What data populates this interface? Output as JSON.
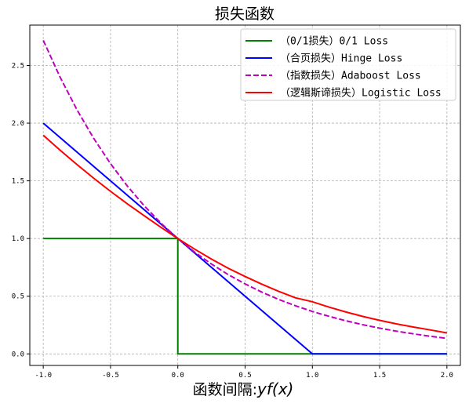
{
  "chart_data": {
    "type": "line",
    "title": "损失函数",
    "xlabel_prefix": "函数间隔:",
    "xlabel_math": "yf(x)",
    "ylabel": "",
    "xlim": [
      -1.1,
      2.1
    ],
    "ylim": [
      -0.1,
      2.85
    ],
    "x_ticks": [
      -1.0,
      -0.5,
      0.0,
      0.5,
      1.0,
      1.5,
      2.0
    ],
    "x_tick_labels": [
      "-1.0",
      "-0.5",
      "0.0",
      "0.5",
      "1.0",
      "1.5",
      "2.0"
    ],
    "y_ticks": [
      0.0,
      0.5,
      1.0,
      1.5,
      2.0,
      2.5
    ],
    "y_tick_labels": [
      "0.0",
      "0.5",
      "1.0",
      "1.5",
      "2.0",
      "2.5"
    ],
    "grid": true,
    "grid_style": "dashed",
    "legend_position": "top-right",
    "series": [
      {
        "name": "（0/1损失）0/1 Loss",
        "color": "#008000",
        "dash": "solid",
        "x": [
          -1.0,
          0.0,
          0.0,
          2.0
        ],
        "y": [
          1.0,
          1.0,
          0.0,
          0.0
        ]
      },
      {
        "name": "（合页损失）Hinge Loss",
        "color": "#0000ff",
        "dash": "solid",
        "x": [
          -1.0,
          1.0,
          2.0
        ],
        "y": [
          2.0,
          0.0,
          0.0
        ]
      },
      {
        "name": "（指数损失）Adaboost Loss",
        "color": "#bf00bf",
        "dash": "dashed",
        "x": [
          -1.0,
          -0.875,
          -0.75,
          -0.625,
          -0.5,
          -0.375,
          -0.25,
          -0.125,
          0.0,
          0.125,
          0.25,
          0.375,
          0.5,
          0.625,
          0.75,
          0.875,
          1.0,
          1.125,
          1.25,
          1.375,
          1.5,
          1.625,
          1.75,
          1.875,
          2.0
        ],
        "y": [
          2.718,
          2.399,
          2.117,
          1.868,
          1.649,
          1.455,
          1.284,
          1.133,
          1.0,
          0.882,
          0.779,
          0.687,
          0.607,
          0.535,
          0.472,
          0.417,
          0.368,
          0.325,
          0.287,
          0.253,
          0.223,
          0.197,
          0.174,
          0.153,
          0.135
        ]
      },
      {
        "name": "（逻辑斯谛损失）Logistic Loss",
        "color": "#ff0000",
        "dash": "solid",
        "x": [
          -1.0,
          -0.875,
          -0.75,
          -0.625,
          -0.5,
          -0.375,
          -0.25,
          -0.125,
          0.0,
          0.125,
          0.25,
          0.375,
          0.5,
          0.625,
          0.75,
          0.875,
          1.0,
          1.125,
          1.25,
          1.375,
          1.5,
          1.625,
          1.75,
          1.875,
          2.0
        ],
        "y": [
          1.895,
          1.766,
          1.642,
          1.523,
          1.409,
          1.301,
          1.198,
          1.097,
          1.0,
          0.908,
          0.822,
          0.742,
          0.671,
          0.604,
          0.542,
          0.486,
          0.452,
          0.405,
          0.363,
          0.325,
          0.291,
          0.26,
          0.233,
          0.208,
          0.182
        ]
      }
    ]
  }
}
